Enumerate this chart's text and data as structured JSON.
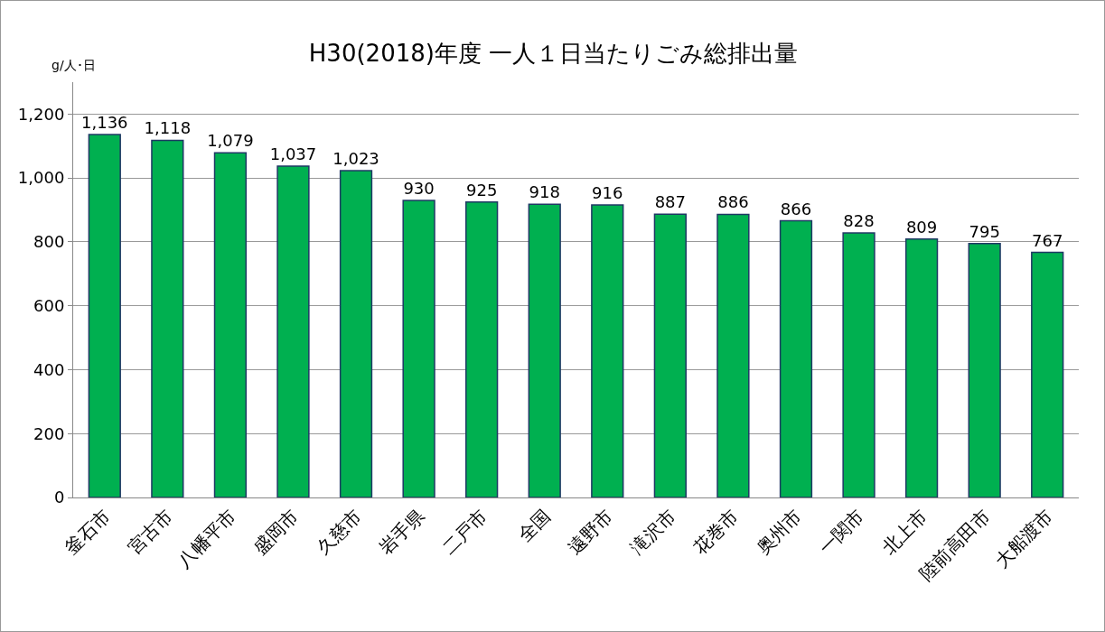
{
  "chart_data": {
    "type": "bar",
    "title": "H30(2018)年度 一人１日当たりごみ総排出量",
    "ylabel": "g/人･日",
    "categories": [
      "釜石市",
      "宮古市",
      "八幡平市",
      "盛岡市",
      "久慈市",
      "岩手県",
      "二戸市",
      "全国",
      "遠野市",
      "滝沢市",
      "花巻市",
      "奥州市",
      "一関市",
      "北上市",
      "陸前高田市",
      "大船渡市"
    ],
    "values": [
      1136,
      1118,
      1079,
      1037,
      1023,
      930,
      925,
      918,
      916,
      887,
      886,
      866,
      828,
      809,
      795,
      767
    ],
    "value_labels": [
      "1,136",
      "1,118",
      "1,079",
      "1,037",
      "1,023",
      "930",
      "925",
      "918",
      "916",
      "887",
      "886",
      "866",
      "828",
      "809",
      "795",
      "767"
    ],
    "color": "#00b050",
    "ylim": [
      0,
      1300
    ],
    "yticks": [
      0,
      {
        "value": 200,
        "label": "200"
      },
      {
        "value": 400,
        "label": "400"
      },
      {
        "value": 600,
        "label": "600"
      },
      {
        "value": 800,
        "label": "800"
      },
      {
        "value": 1000,
        "label": "1,000"
      },
      {
        "value": 1200,
        "label": "1,200"
      }
    ],
    "grid": "y"
  }
}
